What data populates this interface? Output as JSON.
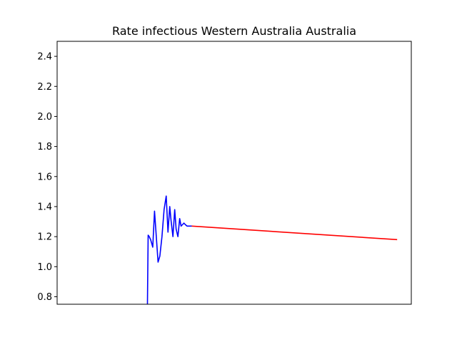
{
  "chart_data": {
    "type": "line",
    "title": "Rate infectious Western Australia Australia",
    "xlabel": "",
    "ylabel": "",
    "ylim": [
      0.75,
      2.5
    ],
    "xlim": [
      0,
      100
    ],
    "yticks": [
      "0.8",
      "1.0",
      "1.2",
      "1.4",
      "1.6",
      "1.8",
      "2.0",
      "2.2",
      "2.4"
    ],
    "grid": false,
    "series": [
      {
        "color": "#0000ff",
        "x": [
          25.5,
          25.7,
          26.0,
          26.4,
          27.0,
          27.5,
          28.0,
          28.5,
          29.0,
          29.6,
          30.2,
          30.8,
          31.3,
          31.8,
          32.2,
          32.7,
          33.2,
          33.6,
          34.1,
          34.6,
          35.0,
          35.4,
          35.8,
          36.2,
          36.7,
          37.1,
          37.5,
          38.0
        ],
        "y": [
          0.75,
          1.21,
          1.2,
          1.18,
          1.13,
          1.37,
          1.2,
          1.03,
          1.07,
          1.2,
          1.38,
          1.47,
          1.23,
          1.4,
          1.3,
          1.2,
          1.38,
          1.25,
          1.2,
          1.32,
          1.27,
          1.28,
          1.29,
          1.28,
          1.27,
          1.27,
          1.27,
          1.27
        ]
      },
      {
        "color": "#ff0000",
        "x": [
          38.0,
          96.0
        ],
        "y": [
          1.27,
          1.18
        ]
      }
    ]
  }
}
